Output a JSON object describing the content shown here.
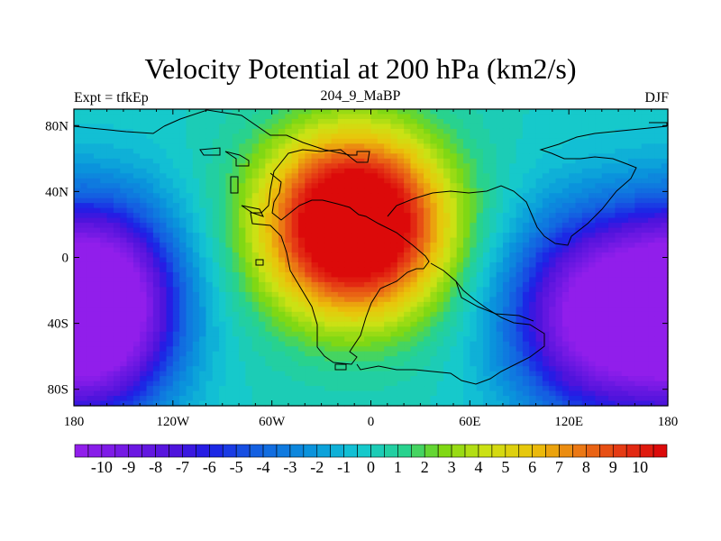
{
  "header": {
    "title": "Velocity Potential at 200 hPa (km2/s)",
    "left": "Expt = tfkEp",
    "center": "204_9_MaBP",
    "right": "DJF"
  },
  "chart_data": {
    "type": "heatmap",
    "title": "Velocity Potential at 200 hPa (km2/s)",
    "x": {
      "lim": [
        -180,
        180
      ],
      "ticks": [
        -180,
        -120,
        -60,
        0,
        60,
        120,
        180
      ],
      "tick_labels": [
        "180",
        "120W",
        "60W",
        "0",
        "60E",
        "120E",
        "180"
      ]
    },
    "y": {
      "lim": [
        -90,
        90
      ],
      "ticks": [
        80,
        40,
        0,
        -40,
        -80
      ],
      "tick_labels": [
        "80N",
        "40N",
        "0",
        "40S",
        "80S"
      ]
    },
    "colorbar": {
      "min": -11,
      "max": 11,
      "step": 0.5,
      "labels": [
        "-10",
        "-9",
        "-8",
        "-7",
        "-6",
        "-5",
        "-4",
        "-3",
        "-2",
        "-1",
        "0",
        "1",
        "2",
        "3",
        "4",
        "5",
        "6",
        "7",
        "8",
        "9",
        "10"
      ],
      "label_values": [
        -10,
        -9,
        -8,
        -7,
        -6,
        -5,
        -4,
        -3,
        -2,
        -1,
        0,
        1,
        2,
        3,
        4,
        5,
        6,
        7,
        8,
        9,
        10
      ]
    },
    "field_centers": [
      {
        "lon": -10,
        "lat": 20,
        "value": 15,
        "spread_lon": 55,
        "spread_lat": 55
      },
      {
        "lon": 140,
        "lat": -35,
        "value": -12,
        "spread_lon": 55,
        "spread_lat": 60
      },
      {
        "lon": -160,
        "lat": -30,
        "value": -12,
        "spread_lon": 45,
        "spread_lat": 60
      }
    ]
  }
}
